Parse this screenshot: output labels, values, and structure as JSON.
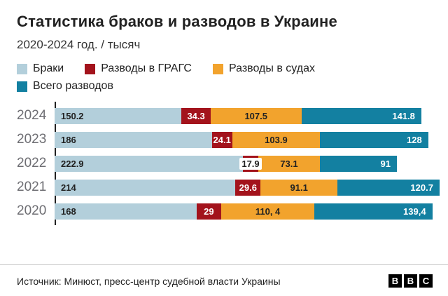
{
  "header": {
    "title": "Статистика браков и разводов в Украине",
    "subtitle": "2020-2024 год. / тысяч"
  },
  "legend": [
    {
      "label": "Браки",
      "color": "#b3cfdb"
    },
    {
      "label": "Разводы в ГРАГС",
      "color": "#a3131c"
    },
    {
      "label": "Разводы в судах",
      "color": "#f2a32d"
    },
    {
      "label": "Всего разводов",
      "color": "#1380a1"
    }
  ],
  "chart_data": {
    "type": "bar",
    "orientation": "horizontal",
    "stacked": true,
    "title": "Статистика браков и разводов в Украине",
    "subtitle": "2020-2024 год. / тысяч",
    "unit": "тысяч",
    "categories": [
      "2024",
      "2023",
      "2022",
      "2021",
      "2020"
    ],
    "series": [
      {
        "name": "Браки",
        "color": "#b3cfdb",
        "values": [
          150.2,
          186,
          222.9,
          214,
          168
        ],
        "labels": [
          "150.2",
          "186",
          "222.9",
          "214",
          "168"
        ]
      },
      {
        "name": "Разводы в ГРАГС",
        "color": "#a3131c",
        "values": [
          34.3,
          24.1,
          17.9,
          29.6,
          29
        ],
        "labels": [
          "34.3",
          "24.1",
          "17.9",
          "29.6",
          "29"
        ]
      },
      {
        "name": "Разводы в судах",
        "color": "#f2a32d",
        "values": [
          107.5,
          103.9,
          73.1,
          91.1,
          110.4
        ],
        "labels": [
          "107.5",
          "103.9",
          "73.1",
          "91.1",
          "110, 4"
        ]
      },
      {
        "name": "Всего разводов",
        "color": "#1380a1",
        "values": [
          141.8,
          128,
          91,
          120.7,
          139.4
        ],
        "labels": [
          "141.8",
          "128",
          "91",
          "120.7",
          "139,4"
        ]
      }
    ],
    "legend_position": "top",
    "grid": false
  },
  "footer": {
    "source": "Источник: Минюст, пресс-центр судебной власти Украины",
    "logo_letters": [
      "B",
      "B",
      "C"
    ]
  }
}
